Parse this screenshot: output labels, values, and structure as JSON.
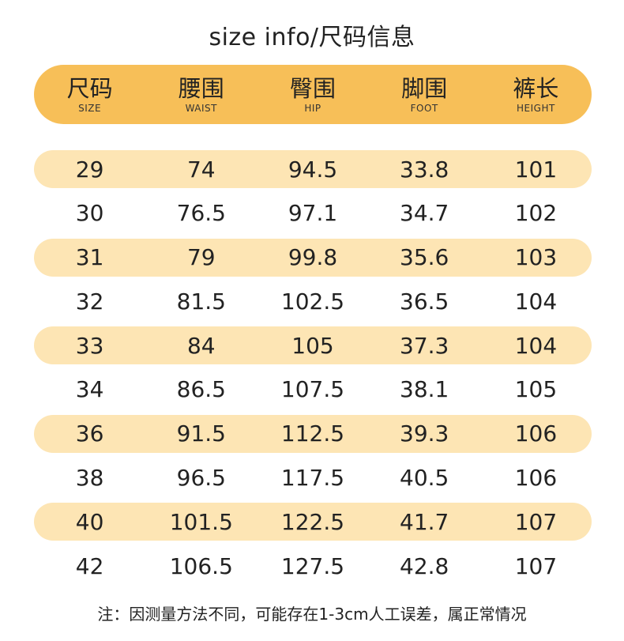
{
  "title": "size info/尺码信息",
  "columns": [
    {
      "cn": "尺码",
      "en": "SIZE"
    },
    {
      "cn": "腰围",
      "en": "WAIST"
    },
    {
      "cn": "臀围",
      "en": "HIP"
    },
    {
      "cn": "脚围",
      "en": "FOOT"
    },
    {
      "cn": "裤长",
      "en": "HEIGHT"
    }
  ],
  "rows": [
    [
      "29",
      "74",
      "94.5",
      "33.8",
      "101"
    ],
    [
      "30",
      "76.5",
      "97.1",
      "34.7",
      "102"
    ],
    [
      "31",
      "79",
      "99.8",
      "35.6",
      "103"
    ],
    [
      "32",
      "81.5",
      "102.5",
      "36.5",
      "104"
    ],
    [
      "33",
      "84",
      "105",
      "37.3",
      "104"
    ],
    [
      "34",
      "86.5",
      "107.5",
      "38.1",
      "105"
    ],
    [
      "36",
      "91.5",
      "112.5",
      "39.3",
      "106"
    ],
    [
      "38",
      "96.5",
      "117.5",
      "40.5",
      "106"
    ],
    [
      "40",
      "101.5",
      "122.5",
      "41.7",
      "107"
    ],
    [
      "42",
      "106.5",
      "127.5",
      "42.8",
      "107"
    ]
  ],
  "note": "注：因测量方法不同，可能存在1-3cm人工误差，属正常情况",
  "colors": {
    "header_bg": "#f7bf58",
    "row_shade": "#fde5b4"
  }
}
